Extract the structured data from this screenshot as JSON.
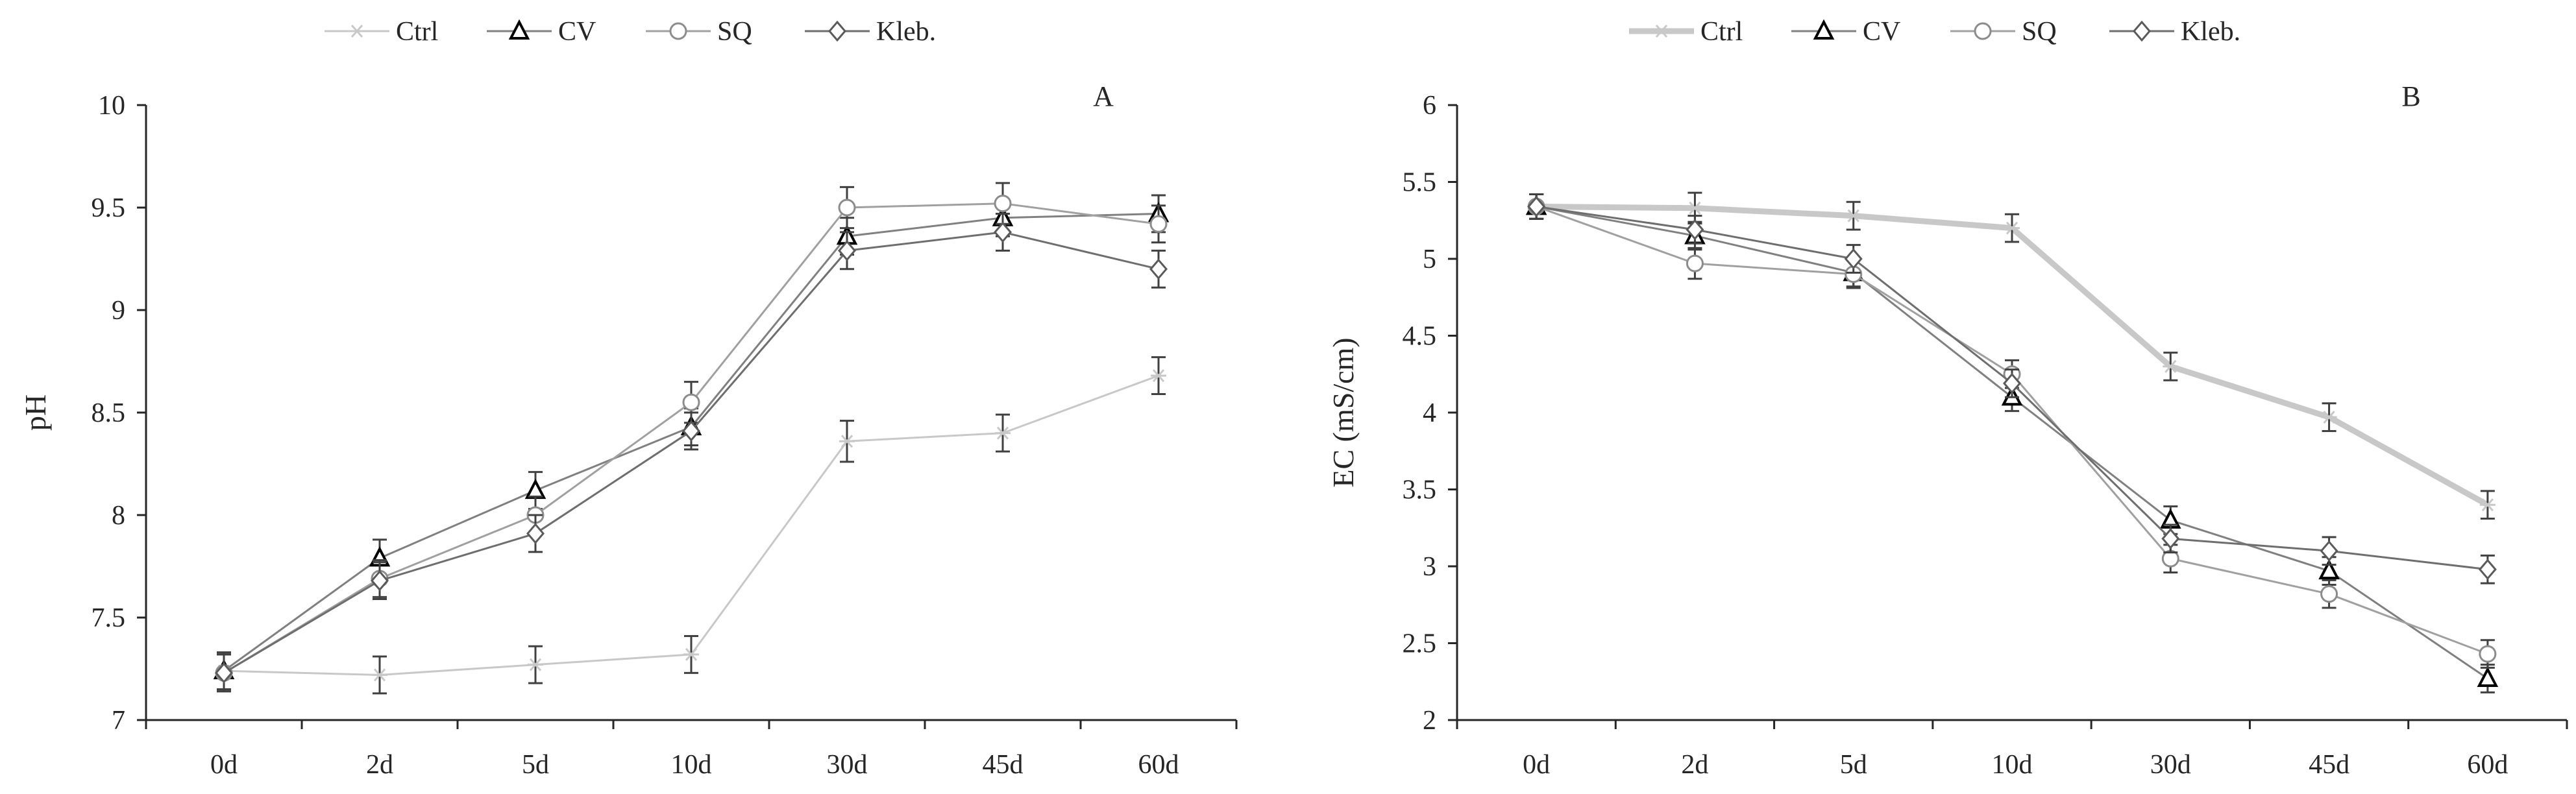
{
  "chart_data": [
    {
      "panel_label": "A",
      "type": "line",
      "title": "",
      "xlabel": "",
      "ylabel": "pH",
      "ylim": [
        7,
        10
      ],
      "yticks": [
        "7",
        "7.5",
        "8",
        "8.5",
        "9",
        "9.5",
        "10"
      ],
      "categories": [
        "0d",
        "2d",
        "5d",
        "10d",
        "30d",
        "45d",
        "60d"
      ],
      "grid": false,
      "legend_position": "top",
      "series": [
        {
          "name": "Ctrl",
          "marker": "star",
          "values": [
            7.24,
            7.22,
            7.27,
            7.32,
            8.36,
            8.4,
            8.68
          ],
          "errors": [
            0.09,
            0.09,
            0.09,
            0.09,
            0.1,
            0.09,
            0.09
          ]
        },
        {
          "name": "CV",
          "marker": "triangle",
          "values": [
            7.24,
            7.79,
            8.12,
            8.43,
            9.36,
            9.45,
            9.47
          ],
          "errors": [
            0.09,
            0.09,
            0.09,
            0.09,
            0.09,
            0.09,
            0.09
          ]
        },
        {
          "name": "SQ",
          "marker": "circle",
          "values": [
            7.23,
            7.69,
            8.0,
            8.55,
            9.5,
            9.52,
            9.42
          ],
          "errors": [
            0.09,
            0.09,
            0.09,
            0.1,
            0.1,
            0.1,
            0.09
          ]
        },
        {
          "name": "Kleb.",
          "marker": "diamond",
          "values": [
            7.23,
            7.68,
            7.91,
            8.41,
            9.29,
            9.38,
            9.2
          ],
          "errors": [
            0.09,
            0.09,
            0.09,
            0.09,
            0.09,
            0.09,
            0.09
          ]
        }
      ]
    },
    {
      "panel_label": "B",
      "type": "line",
      "title": "",
      "xlabel": "",
      "ylabel": "EC (mS/cm)",
      "ylim": [
        2,
        6
      ],
      "yticks": [
        "2",
        "2.5",
        "3",
        "3.5",
        "4",
        "4.5",
        "5",
        "5.5",
        "6"
      ],
      "categories": [
        "0d",
        "2d",
        "5d",
        "10d",
        "30d",
        "45d",
        "60d"
      ],
      "grid": false,
      "legend_position": "top",
      "series": [
        {
          "name": "Ctrl",
          "marker": "star",
          "values": [
            5.34,
            5.33,
            5.28,
            5.2,
            4.3,
            3.97,
            3.4
          ],
          "errors": [
            0.08,
            0.1,
            0.09,
            0.09,
            0.09,
            0.09,
            0.09
          ]
        },
        {
          "name": "CV",
          "marker": "triangle",
          "values": [
            5.34,
            5.15,
            4.91,
            4.1,
            3.3,
            2.97,
            2.27
          ],
          "errors": [
            0.08,
            0.09,
            0.09,
            0.09,
            0.09,
            0.09,
            0.09
          ]
        },
        {
          "name": "SQ",
          "marker": "circle",
          "values": [
            5.34,
            4.97,
            4.9,
            4.25,
            3.05,
            2.82,
            2.43
          ],
          "errors": [
            0.08,
            0.1,
            0.09,
            0.09,
            0.09,
            0.09,
            0.09
          ]
        },
        {
          "name": "Kleb.",
          "marker": "diamond",
          "values": [
            5.34,
            5.19,
            5.0,
            4.19,
            3.18,
            3.1,
            2.98
          ],
          "errors": [
            0.08,
            0.09,
            0.09,
            0.09,
            0.09,
            0.09,
            0.09
          ]
        }
      ]
    }
  ],
  "colors": {
    "axis": "#262626",
    "text": "#262626",
    "Ctrl": "#c8c8c8",
    "CV": "#808080",
    "SQ": "#a0a0a0",
    "Kleb.": "#6e6e6e",
    "marker_CV": "#000000",
    "marker_SQ": "#8c8c8c",
    "marker_Kleb.": "#5a5a5a",
    "error_bar": "#404040"
  }
}
